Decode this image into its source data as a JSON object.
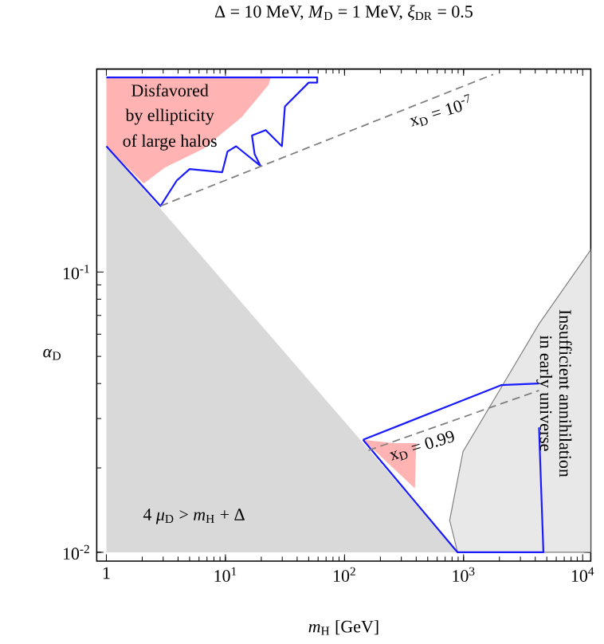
{
  "chart_data": {
    "type": "line",
    "title": "Δ = 10 MeV,   *M*$_{D}$ = 1 MeV,   *ξ*$_{DR}$ = 0.5",
    "xlabel": "*m*$_{H}$   [GeV]",
    "ylabel": "*α*$_{D}$",
    "log": "xy",
    "xlim": [
      0.83,
      11700
    ],
    "ylim": [
      0.0093,
      0.53
    ],
    "xticks": [
      1,
      {
        "value": 10,
        "label": "10$^{1}$"
      },
      {
        "value": 100,
        "label": "10$^{2}$"
      },
      {
        "value": 1000,
        "label": "10$^{3}$"
      },
      {
        "value": 10000,
        "label": "10$^{4}$"
      }
    ],
    "yticks": [
      {
        "value": 0.01,
        "label": "10$^{-2}$"
      },
      {
        "value": 0.1,
        "label": "10$^{-1}$"
      }
    ],
    "series": [
      {
        "type": "area",
        "color": "#d9d9d9",
        "x": [
          1,
          1,
          890
        ],
        "values": [
          0.01,
          0.281,
          0.01
        ]
      },
      {
        "type": "area",
        "color": "#ffb3b3",
        "x": [
          1,
          2.06,
          3.1,
          6.5,
          13.7,
          23,
          24,
          1
        ],
        "values": [
          0.281,
          0.207,
          0.236,
          0.275,
          0.357,
          0.465,
          0.495,
          0.495
        ]
      },
      {
        "type": "area",
        "color": "#ffb3b3",
        "x": [
          143,
          260,
          400,
          390,
          143
        ],
        "values": [
          0.0252,
          0.0245,
          0.0245,
          0.0169,
          0.0252
        ]
      },
      {
        "type": "area",
        "color": "#808080",
        "line_style": "solid",
        "x": [
          890,
          764,
          990,
          2070,
          4300,
          11700,
          11700
        ],
        "values": [
          0.01,
          0.013,
          0.0229,
          0.0387,
          0.0653,
          0.12,
          0.01
        ]
      },
      {
        "color": "#1a1aff",
        "x": [
          1,
          59,
          59,
          50,
          31.6,
          29.8,
          21.8,
          16.7,
          17.6,
          19.7,
          12.3,
          10.4,
          9.4,
          5.0,
          3.9,
          2.85,
          1
        ],
        "values": [
          0.495,
          0.495,
          0.474,
          0.474,
          0.39,
          0.281,
          0.321,
          0.307,
          0.263,
          0.239,
          0.281,
          0.269,
          0.227,
          0.233,
          0.212,
          0.172,
          0.281
        ]
      },
      {
        "color": "#1a1aff",
        "x": [
          143,
          2070,
          4300
        ],
        "values": [
          0.0252,
          0.0395,
          0.04
        ]
      },
      {
        "color": "#1a1aff",
        "x": [
          4300,
          4680,
          890,
          143
        ],
        "values": [
          0.0279,
          0.01,
          0.01,
          0.0252
        ]
      },
      {
        "color": "#808080",
        "line_style": "dashed",
        "x": [
          2.85,
          1770
        ],
        "values": [
          0.172,
          0.507
        ]
      },
      {
        "color": "#808080",
        "line_style": "dashed",
        "x": [
          159,
          4300
        ],
        "values": [
          0.0231,
          0.0378
        ]
      }
    ],
    "annotations": [
      "Disfavored",
      "by ellipticity",
      "of large halos",
      "x$_{D}$ = 10$^{-7}$",
      "x$_{D}$ = 0.99",
      "Insufficient annihilation",
      "in early universe",
      "4 *μ*$_{D}$ > *m*$_{H}$ + Δ"
    ]
  }
}
